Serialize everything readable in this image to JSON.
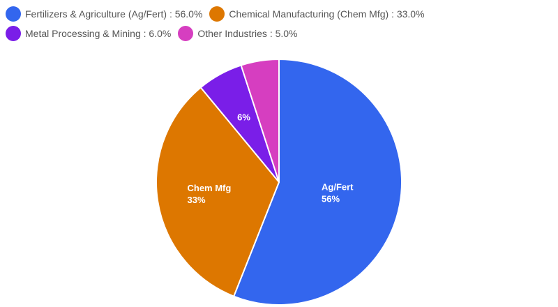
{
  "chart_data": {
    "type": "pie",
    "slices": [
      {
        "legend": "Fertilizers & Agriculture (Ag/Fert) : 56.0%",
        "short": "Ag/Fert",
        "pct_label": "56%",
        "value": 56.0,
        "color": "#3366ee"
      },
      {
        "legend": "Chemical Manufacturing (Chem Mfg) : 33.0%",
        "short": "Chem Mfg",
        "pct_label": "33%",
        "value": 33.0,
        "color": "#dd7700"
      },
      {
        "legend": "Metal Processing & Mining : 6.0%",
        "short": "",
        "pct_label": "6%",
        "value": 6.0,
        "color": "#7a1ee8"
      },
      {
        "legend": "Other Industries : 5.0%",
        "short": "",
        "pct_label": "",
        "value": 5.0,
        "color": "#d63ec0"
      }
    ],
    "legend_position": "top-left"
  }
}
